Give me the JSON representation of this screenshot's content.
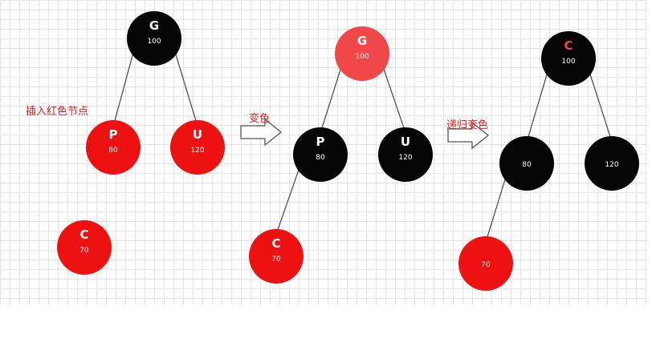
{
  "colors": {
    "red_node": "#ee1111",
    "light_red_node": "#f04848",
    "black_node": "#050505",
    "edge": "#444444",
    "label_text": "#e02020",
    "arrow_stroke": "#555555"
  },
  "steps": [
    {
      "label": "插入红色节点",
      "nodes": [
        {
          "id": "G",
          "letter": "G",
          "value": "100",
          "color": "black"
        },
        {
          "id": "P",
          "letter": "P",
          "value": "80",
          "color": "red"
        },
        {
          "id": "U",
          "letter": "U",
          "value": "120",
          "color": "red"
        },
        {
          "id": "C",
          "letter": "C",
          "value": "70",
          "color": "red"
        }
      ],
      "edges": [
        [
          "G",
          "P"
        ],
        [
          "G",
          "U"
        ]
      ]
    },
    {
      "label": "变色",
      "nodes": [
        {
          "id": "G",
          "letter": "G",
          "value": "100",
          "color": "light_red"
        },
        {
          "id": "P",
          "letter": "P",
          "value": "80",
          "color": "black"
        },
        {
          "id": "U",
          "letter": "U",
          "value": "120",
          "color": "black"
        },
        {
          "id": "C",
          "letter": "C",
          "value": "70",
          "color": "red"
        }
      ],
      "edges": [
        [
          "G",
          "P"
        ],
        [
          "G",
          "U"
        ],
        [
          "P",
          "C"
        ]
      ]
    },
    {
      "label": "递归变色",
      "nodes": [
        {
          "id": "G",
          "letter": "C",
          "value": "100",
          "color": "black",
          "letter_color": "red"
        },
        {
          "id": "P",
          "letter": "",
          "value": "80",
          "color": "black"
        },
        {
          "id": "U",
          "letter": "",
          "value": "120",
          "color": "black"
        },
        {
          "id": "C",
          "letter": "",
          "value": "70",
          "color": "red"
        }
      ],
      "edges": [
        [
          "G",
          "P"
        ],
        [
          "G",
          "U"
        ],
        [
          "P",
          "C"
        ]
      ]
    }
  ]
}
